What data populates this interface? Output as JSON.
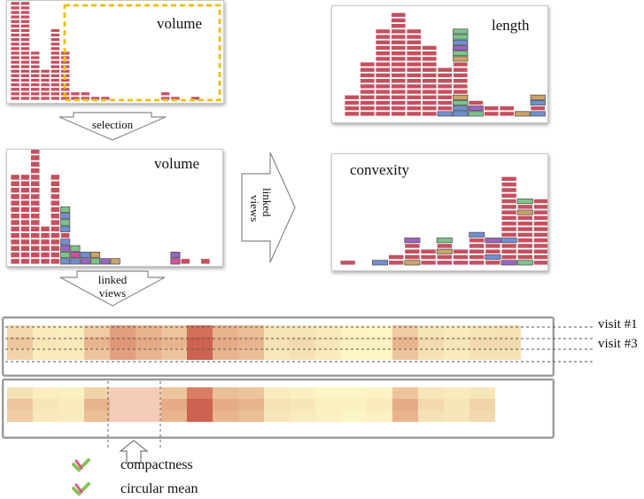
{
  "panels": {
    "volume_top": {
      "title": "volume"
    },
    "length": {
      "title": "length"
    },
    "volume_mid": {
      "title": "volume"
    },
    "convexity": {
      "title": "convexity"
    }
  },
  "arrows": {
    "selection": "selection",
    "linked_views_right_line1": "linked",
    "linked_views_right_line2": "views",
    "linked_views_down_line1": "linked",
    "linked_views_down_line2": "views"
  },
  "heatmap": {
    "visit_first": "visit #1",
    "visit_third": "visit #3"
  },
  "legend": {
    "items": [
      {
        "label": "compactness"
      },
      {
        "label": "circular mean"
      }
    ]
  },
  "colors": {
    "bar": "#c4505f",
    "bar_edge": "#ffffff",
    "selection_border": "#e8c51e",
    "green": "#7cc48a",
    "blue": "#6f8fd0",
    "purple": "#9b63c2",
    "pink": "#d44fa0",
    "tan": "#c9a466",
    "teal": "#5bb0b7"
  }
}
